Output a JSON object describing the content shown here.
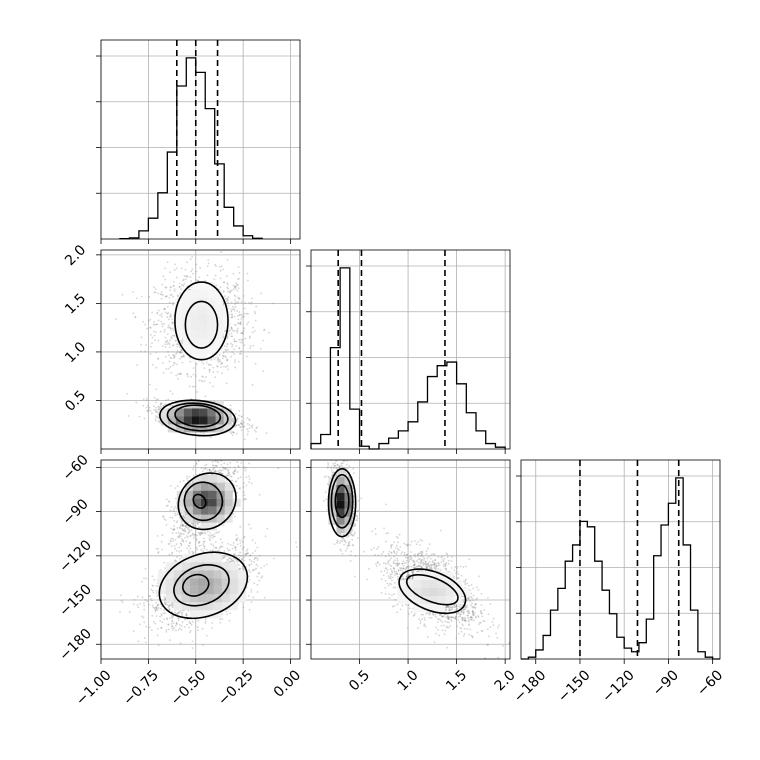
{
  "chart_data": {
    "type": "corner",
    "colors": {
      "line": "#000000",
      "grid": "#b0b0b0",
      "points": "#888888"
    },
    "grid": true,
    "parameters": [
      {
        "id": "p0",
        "range": [
          -1.0,
          0.05
        ],
        "ticks": [
          -1.0,
          -0.75,
          -0.5,
          -0.25,
          0.0
        ],
        "tick_labels": [
          "−1.00",
          "−0.75",
          "−0.50",
          "−0.25",
          "0.00"
        ],
        "quantiles": [
          -0.6,
          -0.5,
          -0.385
        ],
        "hist_edges": [
          -0.9,
          -0.85,
          -0.8,
          -0.75,
          -0.7,
          -0.65,
          -0.6,
          -0.55,
          -0.5,
          -0.45,
          -0.4,
          -0.35,
          -0.3,
          -0.25,
          -0.2,
          -0.15
        ],
        "hist_counts": [
          0.002,
          0.006,
          0.045,
          0.115,
          0.255,
          0.48,
          0.845,
          1.0,
          0.92,
          0.72,
          0.415,
          0.175,
          0.072,
          0.018,
          0.004
        ]
      },
      {
        "id": "p1",
        "range": [
          0.0,
          2.05
        ],
        "ticks": [
          0.5,
          1.0,
          1.5,
          2.0
        ],
        "tick_labels": [
          "0.5",
          "1.0",
          "1.5",
          "2.0"
        ],
        "quantiles": [
          0.28,
          0.52,
          1.38
        ],
        "hist_edges": [
          0.0,
          0.1,
          0.2,
          0.3,
          0.4,
          0.5,
          0.6,
          0.7,
          0.8,
          0.9,
          1.0,
          1.1,
          1.2,
          1.3,
          1.4,
          1.5,
          1.6,
          1.7,
          1.8,
          1.9,
          2.0
        ],
        "hist_counts": [
          0.03,
          0.08,
          0.56,
          1.0,
          0.22,
          0.015,
          0.0,
          0.03,
          0.06,
          0.1,
          0.15,
          0.26,
          0.4,
          0.46,
          0.48,
          0.36,
          0.2,
          0.1,
          0.03,
          0.01
        ]
      },
      {
        "id": "p2",
        "range": [
          -190,
          -55
        ],
        "ticks": [
          -180,
          -150,
          -120,
          -90,
          -60
        ],
        "tick_labels": [
          "−180",
          "−150",
          "−120",
          "−90",
          "−60"
        ],
        "quantiles": [
          -150,
          -111,
          -83
        ],
        "hist_edges": [
          -190,
          -185,
          -180,
          -175,
          -170,
          -165,
          -160,
          -155,
          -150,
          -145,
          -140,
          -135,
          -130,
          -125,
          -120,
          -115,
          -110,
          -105,
          -100,
          -95,
          -90,
          -85,
          -80,
          -75,
          -70,
          -65,
          -60,
          -55
        ],
        "hist_counts": [
          0.0,
          0.01,
          0.05,
          0.13,
          0.27,
          0.39,
          0.54,
          0.63,
          0.76,
          0.73,
          0.54,
          0.38,
          0.25,
          0.12,
          0.06,
          0.04,
          0.09,
          0.22,
          0.57,
          0.74,
          0.86,
          1.0,
          0.63,
          0.27,
          0.04,
          0.01,
          0.0
        ]
      }
    ],
    "pair_plots": [
      {
        "x": "p0",
        "y": "p1",
        "clusters": [
          {
            "center": [
              -0.47,
              1.3
            ],
            "sd": [
              0.12,
              0.25
            ],
            "rho": 0.0,
            "weight": 0.55,
            "contours": [
              {
                "center": [
                  -0.47,
                  1.28
                ],
                "rx": 0.085,
                "ry": 0.24,
                "angle_deg": 0
              },
              {
                "center": [
                  -0.47,
                  1.32
                ],
                "rx": 0.14,
                "ry": 0.4,
                "angle_deg": 0
              }
            ],
            "density_peak": 0.05
          },
          {
            "center": [
              -0.49,
              0.33
            ],
            "sd": [
              0.11,
              0.07
            ],
            "rho": -0.45,
            "weight": 0.45,
            "contours": [
              {
                "center": [
                  -0.49,
                  0.34
                ],
                "rx": 0.12,
                "ry": 0.11,
                "angle_deg": 5
              },
              {
                "center": [
                  -0.49,
                  0.33
                ],
                "rx": 0.16,
                "ry": 0.14,
                "angle_deg": 5
              },
              {
                "center": [
                  -0.49,
                  0.32
                ],
                "rx": 0.2,
                "ry": 0.18,
                "angle_deg": 5
              }
            ],
            "density_peak": 1.0
          }
        ]
      },
      {
        "x": "p0",
        "y": "p2",
        "clusters": [
          {
            "center": [
              -0.45,
              -83
            ],
            "sd": [
              0.09,
              14
            ],
            "rho": 0.55,
            "weight": 0.45,
            "contours": [
              {
                "center": [
                  -0.48,
                  -83
                ],
                "rx": 0.03,
                "ry": 5,
                "angle_deg": -35
              },
              {
                "center": [
                  -0.46,
                  -83
                ],
                "rx": 0.1,
                "ry": 13,
                "angle_deg": -40
              },
              {
                "center": [
                  -0.44,
                  -83
                ],
                "rx": 0.16,
                "ry": 18,
                "angle_deg": -40
              }
            ],
            "density_peak": 0.8
          },
          {
            "center": [
              -0.47,
              -140
            ],
            "sd": [
              0.14,
              14
            ],
            "rho": 0.5,
            "weight": 0.55,
            "contours": [
              {
                "center": [
                  -0.5,
                  -140
                ],
                "rx": 0.07,
                "ry": 7,
                "angle_deg": -20
              },
              {
                "center": [
                  -0.47,
                  -140
                ],
                "rx": 0.15,
                "ry": 13,
                "angle_deg": -20
              },
              {
                "center": [
                  -0.46,
                  -140
                ],
                "rx": 0.24,
                "ry": 21,
                "angle_deg": -20
              }
            ],
            "density_peak": 0.35
          }
        ]
      },
      {
        "x": "p1",
        "y": "p2",
        "clusters": [
          {
            "center": [
              0.32,
              -83
            ],
            "sd": [
              0.06,
              13
            ],
            "rho": -0.3,
            "weight": 0.45,
            "contours": [
              {
                "center": [
                  0.32,
                  -83
                ],
                "rx": 0.07,
                "ry": 11,
                "angle_deg": 0
              },
              {
                "center": [
                  0.32,
                  -83
                ],
                "rx": 0.11,
                "ry": 18,
                "angle_deg": 0
              },
              {
                "center": [
                  0.32,
                  -84
                ],
                "rx": 0.14,
                "ry": 23,
                "angle_deg": 0
              }
            ],
            "density_peak": 1.0
          },
          {
            "center": [
              1.25,
              -142
            ],
            "sd": [
              0.24,
              14
            ],
            "rho": -0.55,
            "weight": 0.55,
            "contours": [
              {
                "center": [
                  1.25,
                  -143
                ],
                "rx": 0.28,
                "ry": 8,
                "angle_deg": 22
              },
              {
                "center": [
                  1.25,
                  -144
                ],
                "rx": 0.36,
                "ry": 13,
                "angle_deg": 22
              }
            ],
            "density_peak": 0.12
          }
        ]
      }
    ]
  }
}
